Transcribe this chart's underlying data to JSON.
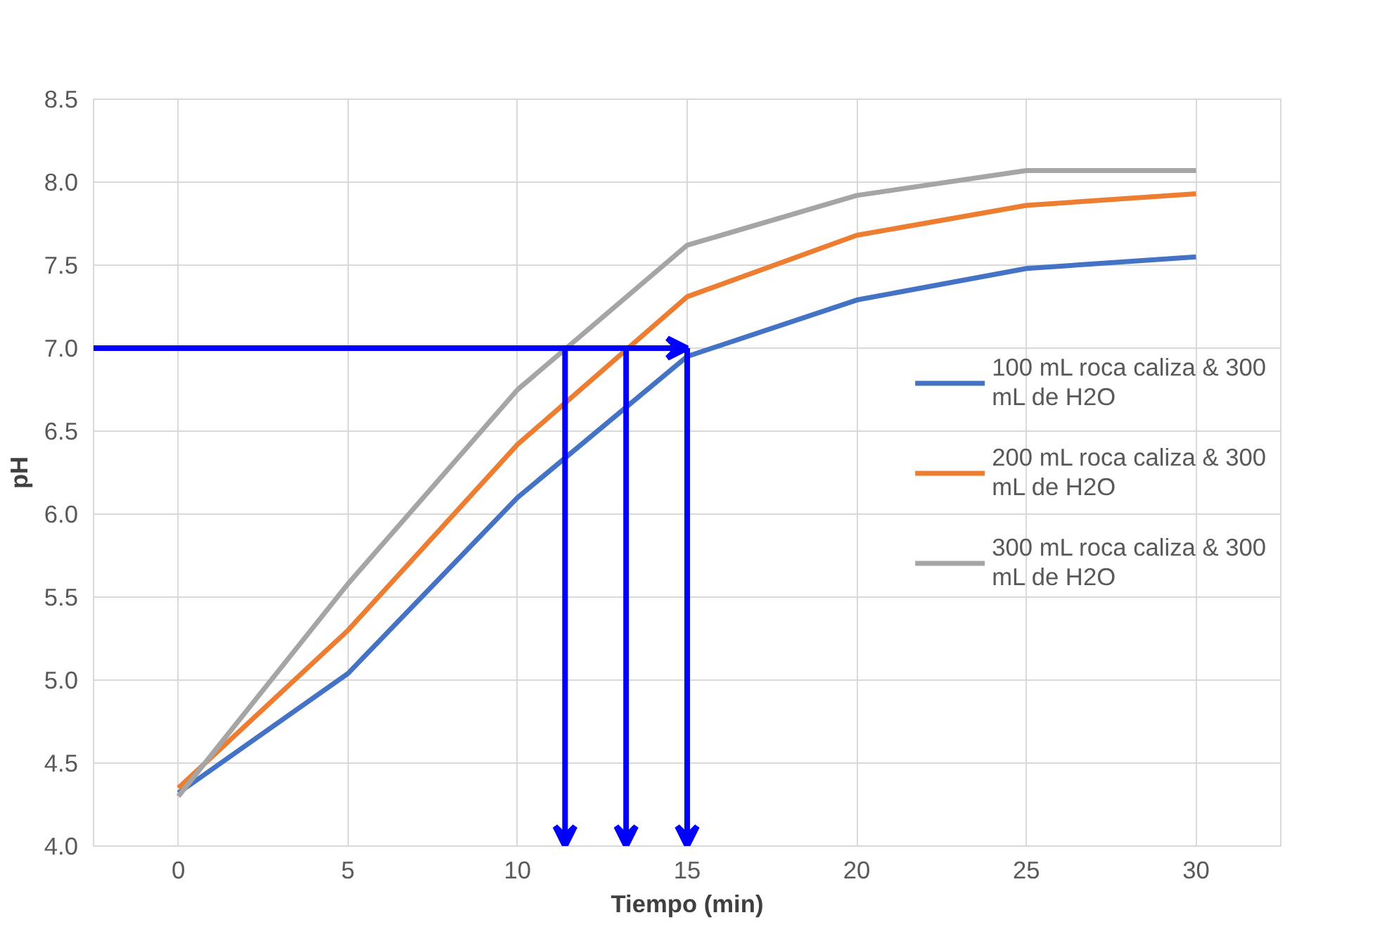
{
  "chart_data": {
    "type": "line",
    "xlabel": "Tiempo (min)",
    "ylabel": "pH",
    "x": [
      0,
      5,
      10,
      15,
      20,
      25,
      30
    ],
    "xlim": [
      -2.5,
      32.5
    ],
    "xticks": [
      0,
      5,
      10,
      15,
      20,
      25,
      30
    ],
    "ylim": [
      4.0,
      8.5
    ],
    "yticks": [
      {
        "value": 4.0,
        "label": "4.0"
      },
      4.5,
      {
        "value": 5.0,
        "label": "5.0"
      },
      5.5,
      {
        "value": 6.0,
        "label": "6.0"
      },
      6.5,
      {
        "value": 7.0,
        "label": "7.0"
      },
      7.5,
      {
        "value": 8.0,
        "label": "8.0"
      },
      8.5
    ],
    "grid": true,
    "legend": "right",
    "line_style": "solid",
    "series": [
      {
        "name": "100 mL roca caliza & 300 mL de H2O",
        "color": "#4472c4",
        "values": [
          4.32,
          5.04,
          6.1,
          6.95,
          7.29,
          7.48,
          7.55
        ]
      },
      {
        "name": "200 mL roca caliza & 300 mL de H2O",
        "color": "#ed7d31",
        "values": [
          4.35,
          5.3,
          6.42,
          7.31,
          7.68,
          7.86,
          7.93
        ]
      },
      {
        "name": "300 mL roca caliza & 300 mL de H2O",
        "color": "#a5a5a5",
        "values": [
          4.3,
          5.58,
          6.75,
          7.62,
          7.92,
          8.07,
          8.07
        ]
      }
    ]
  }
}
